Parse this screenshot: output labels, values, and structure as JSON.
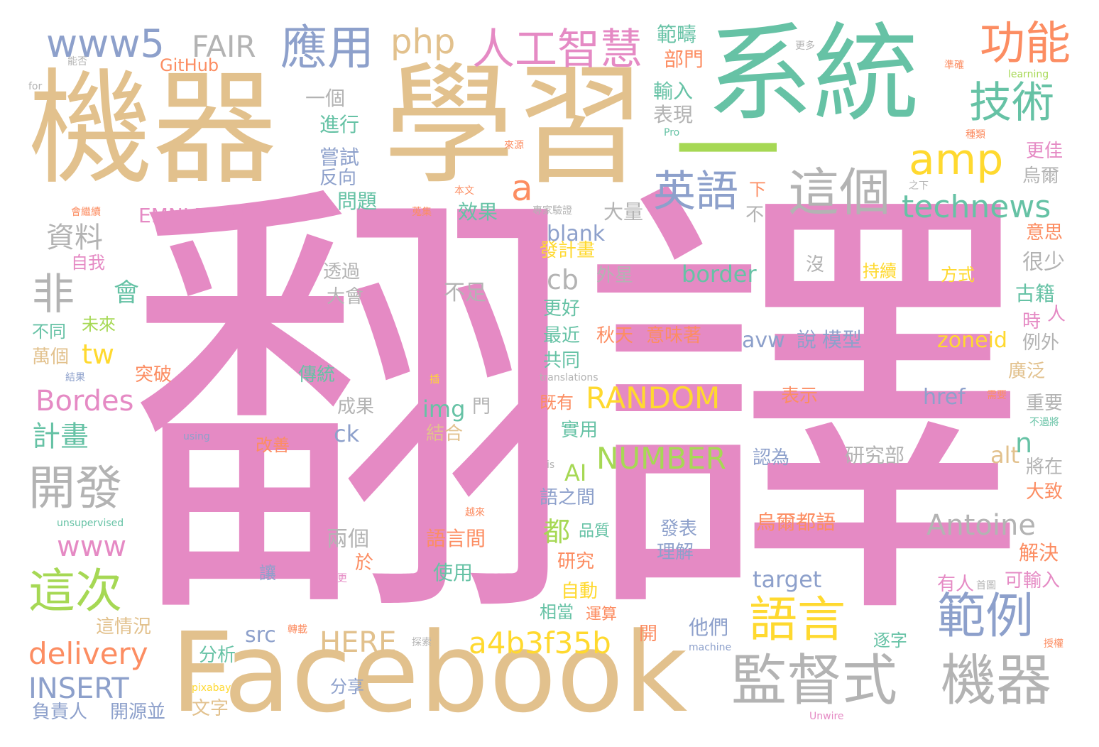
{
  "palette": {
    "pink": "#e58ac4",
    "tan": "#e2c18d",
    "teal": "#66c2a5",
    "green": "#a6d854",
    "gray": "#b3b3b3",
    "blue": "#8da0cb",
    "orange": "#fc8d62",
    "yellow": "#ffd92f"
  },
  "words": [
    {
      "text": "翻譯",
      "c": "pink"
    },
    {
      "text": "學習",
      "c": "tan"
    },
    {
      "text": "機器",
      "c": "tan"
    },
    {
      "text": "系統",
      "c": "teal"
    },
    {
      "text": "Facebook",
      "c": "tan"
    },
    {
      "text": "一",
      "c": "green"
    },
    {
      "text": "監督式",
      "c": "gray"
    },
    {
      "text": "機器",
      "c": "gray"
    },
    {
      "text": "人工智慧",
      "c": "pink"
    },
    {
      "text": "應用",
      "c": "blue"
    },
    {
      "text": "www5",
      "c": "blue"
    },
    {
      "text": "FAIR",
      "c": "gray"
    },
    {
      "text": "php",
      "c": "tan"
    },
    {
      "text": "功能",
      "c": "orange"
    },
    {
      "text": "技術",
      "c": "teal"
    },
    {
      "text": "amp",
      "c": "yellow"
    },
    {
      "text": "這個",
      "c": "gray"
    },
    {
      "text": "英語",
      "c": "blue"
    },
    {
      "text": "a",
      "c": "orange"
    },
    {
      "text": "technews",
      "c": "teal"
    },
    {
      "text": "範例",
      "c": "blue"
    },
    {
      "text": "語言",
      "c": "yellow"
    },
    {
      "text": "這次",
      "c": "green"
    },
    {
      "text": "開發",
      "c": "gray"
    },
    {
      "text": "非",
      "c": "gray"
    },
    {
      "text": "資料",
      "c": "gray"
    },
    {
      "text": "會",
      "c": "teal"
    },
    {
      "text": "tw",
      "c": "yellow"
    },
    {
      "text": "Bordes",
      "c": "pink"
    },
    {
      "text": "計畫",
      "c": "teal"
    },
    {
      "text": "delivery",
      "c": "orange"
    },
    {
      "text": "INSERT",
      "c": "blue"
    },
    {
      "text": "www",
      "c": "pink"
    },
    {
      "text": "HERE",
      "c": "tan"
    },
    {
      "text": "a4b3f35b",
      "c": "yellow"
    },
    {
      "text": "Antoine",
      "c": "gray"
    },
    {
      "text": "RANDOM",
      "c": "yellow"
    },
    {
      "text": "NUMBER",
      "c": "green"
    },
    {
      "text": "cb",
      "c": "gray"
    },
    {
      "text": "blank",
      "c": "blue"
    },
    {
      "text": "border",
      "c": "teal"
    },
    {
      "text": "zoneid",
      "c": "yellow"
    },
    {
      "text": "href",
      "c": "blue"
    },
    {
      "text": "img",
      "c": "teal"
    },
    {
      "text": "ck",
      "c": "blue"
    },
    {
      "text": "alt",
      "c": "tan"
    },
    {
      "text": "n",
      "c": "teal"
    },
    {
      "text": "AI",
      "c": "green"
    },
    {
      "text": "都",
      "c": "green"
    },
    {
      "text": "target",
      "c": "blue"
    },
    {
      "text": "src",
      "c": "blue"
    },
    {
      "text": "avw",
      "c": "blue"
    },
    {
      "text": "說",
      "c": "blue"
    },
    {
      "text": "模型",
      "c": "blue"
    },
    {
      "text": "EMNLP",
      "c": "pink"
    },
    {
      "text": "GitHub",
      "c": "orange"
    },
    {
      "text": "範疇",
      "c": "teal"
    },
    {
      "text": "部門",
      "c": "orange"
    },
    {
      "text": "輸入",
      "c": "teal"
    },
    {
      "text": "表現",
      "c": "gray"
    },
    {
      "text": "一個",
      "c": "gray"
    },
    {
      "text": "進行",
      "c": "teal"
    },
    {
      "text": "嘗試",
      "c": "blue"
    },
    {
      "text": "反向",
      "c": "blue"
    },
    {
      "text": "問題",
      "c": "teal"
    },
    {
      "text": "效果",
      "c": "teal"
    },
    {
      "text": "大量",
      "c": "gray"
    },
    {
      "text": "下",
      "c": "orange"
    },
    {
      "text": "不",
      "c": "gray"
    },
    {
      "text": "更佳",
      "c": "pink"
    },
    {
      "text": "烏爾",
      "c": "gray"
    },
    {
      "text": "意思",
      "c": "orange"
    },
    {
      "text": "很少",
      "c": "gray"
    },
    {
      "text": "古籍",
      "c": "teal"
    },
    {
      "text": "時",
      "c": "pink"
    },
    {
      "text": "人",
      "c": "pink"
    },
    {
      "text": "例外",
      "c": "gray"
    },
    {
      "text": "廣泛",
      "c": "tan"
    },
    {
      "text": "重要",
      "c": "gray"
    },
    {
      "text": "將在",
      "c": "gray"
    },
    {
      "text": "大致",
      "c": "orange"
    },
    {
      "text": "解決",
      "c": "orange"
    },
    {
      "text": "可輸入",
      "c": "pink"
    },
    {
      "text": "有人",
      "c": "pink"
    },
    {
      "text": "發計畫",
      "c": "yellow"
    },
    {
      "text": "外星",
      "c": "gray"
    },
    {
      "text": "沒",
      "c": "gray"
    },
    {
      "text": "持續",
      "c": "yellow"
    },
    {
      "text": "方式",
      "c": "yellow"
    },
    {
      "text": "透過",
      "c": "gray"
    },
    {
      "text": "大會",
      "c": "gray"
    },
    {
      "text": "不足",
      "c": "gray"
    },
    {
      "text": "更好",
      "c": "teal"
    },
    {
      "text": "最近",
      "c": "teal"
    },
    {
      "text": "秋天",
      "c": "orange"
    },
    {
      "text": "意味著",
      "c": "orange"
    },
    {
      "text": "共同",
      "c": "teal"
    },
    {
      "text": "既有",
      "c": "orange"
    },
    {
      "text": "表示",
      "c": "orange"
    },
    {
      "text": "實用",
      "c": "teal"
    },
    {
      "text": "認為",
      "c": "blue"
    },
    {
      "text": "研究部",
      "c": "gray"
    },
    {
      "text": "語之間",
      "c": "blue"
    },
    {
      "text": "烏爾都語",
      "c": "orange"
    },
    {
      "text": "發表",
      "c": "blue"
    },
    {
      "text": "理解",
      "c": "blue"
    },
    {
      "text": "品質",
      "c": "teal"
    },
    {
      "text": "研究",
      "c": "orange"
    },
    {
      "text": "自動",
      "c": "yellow"
    },
    {
      "text": "相當",
      "c": "teal"
    },
    {
      "text": "運算",
      "c": "orange"
    },
    {
      "text": "他們",
      "c": "blue"
    },
    {
      "text": "開",
      "c": "orange"
    },
    {
      "text": "逐字",
      "c": "teal"
    },
    {
      "text": "語言間",
      "c": "orange"
    },
    {
      "text": "使用",
      "c": "teal"
    },
    {
      "text": "兩個",
      "c": "gray"
    },
    {
      "text": "於",
      "c": "orange"
    },
    {
      "text": "讓",
      "c": "blue"
    },
    {
      "text": "門",
      "c": "gray"
    },
    {
      "text": "結合",
      "c": "tan"
    },
    {
      "text": "成果",
      "c": "gray"
    },
    {
      "text": "改善",
      "c": "orange"
    },
    {
      "text": "傳統",
      "c": "teal"
    },
    {
      "text": "突破",
      "c": "orange"
    },
    {
      "text": "萬個",
      "c": "tan"
    },
    {
      "text": "未來",
      "c": "green"
    },
    {
      "text": "不同",
      "c": "teal"
    },
    {
      "text": "自我",
      "c": "pink"
    },
    {
      "text": "這情況",
      "c": "tan"
    },
    {
      "text": "分析",
      "c": "teal"
    },
    {
      "text": "分享",
      "c": "blue"
    },
    {
      "text": "文字",
      "c": "tan"
    },
    {
      "text": "負責人",
      "c": "blue"
    },
    {
      "text": "開源並",
      "c": "blue"
    },
    {
      "text": "能否",
      "c": "gray"
    },
    {
      "text": "for",
      "c": "gray"
    },
    {
      "text": "更多",
      "c": "gray"
    },
    {
      "text": "準確",
      "c": "orange"
    },
    {
      "text": "learning",
      "c": "green"
    },
    {
      "text": "Pro",
      "c": "teal"
    },
    {
      "text": "來源",
      "c": "orange"
    },
    {
      "text": "種類",
      "c": "orange"
    },
    {
      "text": "本文",
      "c": "orange"
    },
    {
      "text": "之下",
      "c": "gray"
    },
    {
      "text": "專家驗證",
      "c": "gray"
    },
    {
      "text": "會繼續",
      "c": "orange"
    },
    {
      "text": "翻譯會",
      "c": "pink"
    },
    {
      "text": "蒐集",
      "c": "orange"
    },
    {
      "text": "應付",
      "c": "pink"
    },
    {
      "text": "結果",
      "c": "blue"
    },
    {
      "text": "translations",
      "c": "gray"
    },
    {
      "text": "需要",
      "c": "orange"
    },
    {
      "text": "不過將",
      "c": "teal"
    },
    {
      "text": "using",
      "c": "blue"
    },
    {
      "text": "is",
      "c": "gray"
    },
    {
      "text": "越來",
      "c": "orange"
    },
    {
      "text": "unsupervised",
      "c": "teal"
    },
    {
      "text": "更",
      "c": "pink"
    },
    {
      "text": "首圖",
      "c": "gray"
    },
    {
      "text": "轉載",
      "c": "orange"
    },
    {
      "text": "探索",
      "c": "gray"
    },
    {
      "text": "machine",
      "c": "blue"
    },
    {
      "text": "授權",
      "c": "orange"
    },
    {
      "text": "pixabay",
      "c": "yellow"
    },
    {
      "text": "Unwire",
      "c": "pink"
    },
    {
      "text": "插",
      "c": "yellow"
    }
  ]
}
